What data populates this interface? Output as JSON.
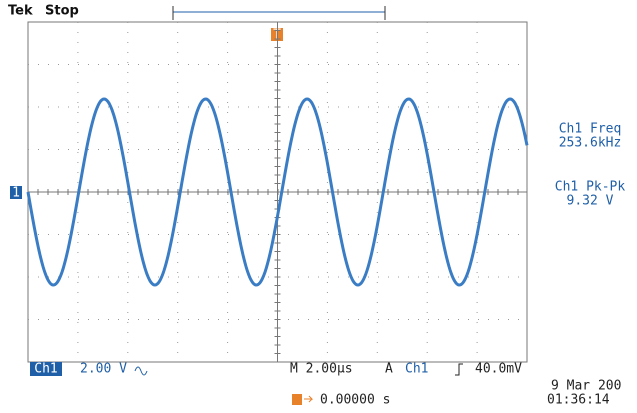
{
  "header": {
    "brand": "Tek",
    "status": "Stop"
  },
  "markers": {
    "trigger": "T",
    "channel": "1"
  },
  "measurements": [
    {
      "label": "Ch1 Freq",
      "value": "253.6kHz"
    },
    {
      "label": "Ch1 Pk-Pk",
      "value": "9.32 V"
    }
  ],
  "footer": {
    "channel": "Ch1",
    "scale": "2.00 V",
    "timebase": "M 2.00µs",
    "trigger_mode": "A",
    "trigger_source": "Ch1",
    "trigger_level": "40.0mV",
    "trigger_position": "0.00000 s",
    "date": "9 Mar 200",
    "time": "01:36:14"
  }
}
